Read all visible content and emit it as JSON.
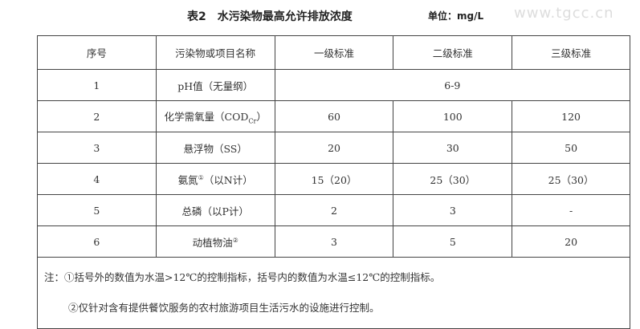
{
  "title": "表2　水污染物最高允许排放浓度",
  "unit": "单位：mg/L",
  "watermark": "www.tgcc.cn",
  "headers": [
    "序号",
    "污染物或项目名称",
    "一级标准",
    "二级标准",
    "三级标准"
  ],
  "rows": [
    {
      "no": "1",
      "name": "pH值（无量纲）",
      "merged": "6-9"
    },
    {
      "no": "2",
      "name": "化学需氧量（COD",
      "sub": "Cr",
      "name_end": "）",
      "v": [
        "60",
        "100",
        "120"
      ]
    },
    {
      "no": "3",
      "name": "悬浮物（SS）",
      "v": [
        "20",
        "30",
        "50"
      ]
    },
    {
      "no": "4",
      "name": "氨氮",
      "sup": "①",
      "name_end": "（以N计）",
      "v": [
        "15（20）",
        "25（30）",
        "25（30）"
      ]
    },
    {
      "no": "5",
      "name": "总磷（以P计）",
      "v": [
        "2",
        "3",
        "-"
      ]
    },
    {
      "no": "6",
      "name": "动植物油",
      "sup": "②",
      "v": [
        "3",
        "5",
        "20"
      ]
    }
  ],
  "notes": [
    "注：①括号外的数值为水温>12℃的控制指标，括号内的数值为水温≤12℃的控制指标。",
    "②仅针对含有提供餐饮服务的农村旅游项目生活污水的设施进行控制。"
  ]
}
